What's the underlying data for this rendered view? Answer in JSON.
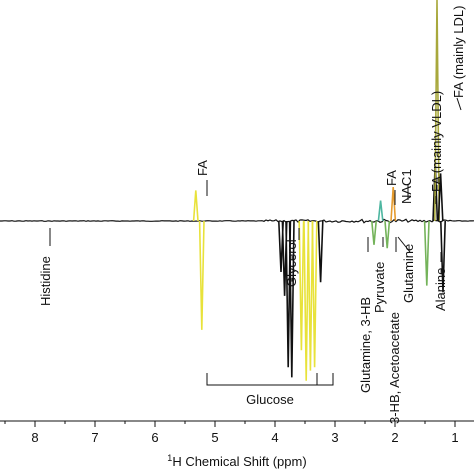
{
  "chart_data": {
    "type": "line",
    "title": "",
    "xlabel_sup": "1",
    "xlabel": "H Chemical Shift (ppm)",
    "ylabel": "",
    "x_reversed": true,
    "xticks": [
      8,
      7,
      6,
      5,
      4,
      3,
      2,
      1
    ],
    "xlim": [
      9,
      0.9
    ],
    "series_color": "#111111",
    "colors": {
      "yellow": "#e8e23a",
      "olive": "#a8a83c",
      "orange": "#e59b2e",
      "green": "#74b35a",
      "teal": "#4db6a0",
      "dark": "#111111"
    },
    "peaks": [
      {
        "ppm": 5.32,
        "value": 0.9,
        "color": "#e8e23a"
      },
      {
        "ppm": 5.22,
        "value": -3.2,
        "color": "#e8e23a"
      },
      {
        "ppm": 3.9,
        "value": -1.5,
        "color": "#111111"
      },
      {
        "ppm": 3.84,
        "value": -2.2,
        "color": "#111111"
      },
      {
        "ppm": 3.78,
        "value": -4.3,
        "color": "#111111"
      },
      {
        "ppm": 3.72,
        "value": -4.6,
        "color": "#111111"
      },
      {
        "ppm": 3.56,
        "value": -3.8,
        "color": "#e8e23a"
      },
      {
        "ppm": 3.48,
        "value": -4.7,
        "color": "#e8e23a"
      },
      {
        "ppm": 3.41,
        "value": -4.4,
        "color": "#e8e23a"
      },
      {
        "ppm": 3.34,
        "value": -4.3,
        "color": "#e8e23a"
      },
      {
        "ppm": 3.24,
        "value": -1.8,
        "color": "#111111"
      },
      {
        "ppm": 2.35,
        "value": -0.7,
        "color": "#74b35a"
      },
      {
        "ppm": 2.24,
        "value": 0.6,
        "color": "#4db6a0"
      },
      {
        "ppm": 2.13,
        "value": -0.8,
        "color": "#74b35a"
      },
      {
        "ppm": 2.03,
        "value": 1.0,
        "color": "#e59b2e"
      },
      {
        "ppm": 1.47,
        "value": -1.9,
        "color": "#74b35a"
      },
      {
        "ppm": 1.33,
        "value": 1.7,
        "color": "#111111"
      },
      {
        "ppm": 1.3,
        "value": 6.5,
        "color": "#a8a83c"
      },
      {
        "ppm": 1.24,
        "value": 1.4,
        "color": "#111111"
      },
      {
        "ppm": 1.2,
        "value": -2.1,
        "color": "#111111"
      }
    ],
    "annotations": [
      {
        "text": "FA",
        "ppm": 5.32,
        "direction": "up"
      },
      {
        "text": "Histidine",
        "ppm": 7.1,
        "direction": "down"
      },
      {
        "text": "Glycerol",
        "ppm": 3.6,
        "direction": "down"
      },
      {
        "text": "Glutamine, 3-HB",
        "ppm": 2.4,
        "direction": "down"
      },
      {
        "text": "Pyruvate",
        "ppm": 2.36,
        "direction": "down"
      },
      {
        "text": "3-HB, Acetoacetate",
        "ppm": 2.28,
        "direction": "down"
      },
      {
        "text": "Glutamine",
        "ppm": 2.13,
        "direction": "down"
      },
      {
        "text": "FA",
        "ppm": 2.24,
        "direction": "up"
      },
      {
        "text": "NAC1",
        "ppm": 2.03,
        "direction": "up"
      },
      {
        "text": "FA (mainly VLDL)",
        "ppm": 1.6,
        "direction": "up"
      },
      {
        "text": "Alanine",
        "ppm": 1.47,
        "direction": "down"
      },
      {
        "text": "FA (mainly LDL)",
        "ppm": 1.03,
        "direction": "up"
      },
      {
        "text": "Glucose",
        "ppm": 3.95,
        "direction": "bracket"
      }
    ],
    "brackets": [
      {
        "text": "Glucose",
        "from": 5.22,
        "to": 3.24
      }
    ]
  }
}
